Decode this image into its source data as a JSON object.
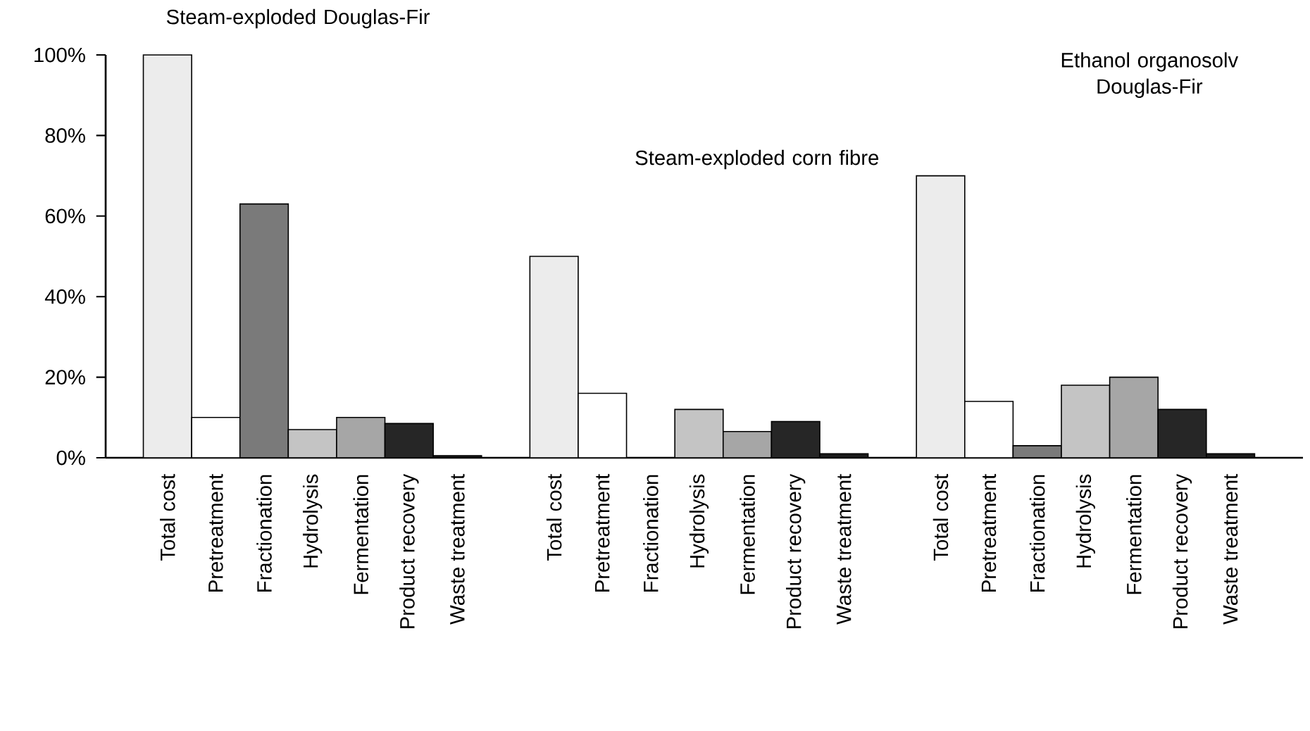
{
  "chart_data": {
    "type": "bar",
    "categories": [
      "Total cost",
      "Pretreatment",
      "Fractionation",
      "Hydrolysis",
      "Fermentation",
      "Product recovery",
      "Waste treatment",
      null,
      "Total cost",
      "Pretreatment",
      "Fractionation",
      "Hydrolysis",
      "Fermentation",
      "Product recovery",
      "Waste treatment",
      null,
      "Total cost",
      "Pretreatment",
      "Fractionation",
      "Hydrolysis",
      "Fermentation",
      "Product recovery",
      "Waste treatment"
    ],
    "values": [
      100,
      10,
      63,
      7,
      10,
      8.5,
      0.5,
      null,
      50,
      16,
      0,
      12,
      6.5,
      9,
      1,
      null,
      70,
      14,
      3,
      18,
      20,
      12,
      1
    ],
    "colors": [
      "#ececec",
      "#ffffff",
      "#7a7a7a",
      "#c4c4c4",
      "#a6a6a6",
      "#262626",
      "#1a1a1a",
      null,
      "#ececec",
      "#ffffff",
      "#7a7a7a",
      "#c4c4c4",
      "#a6a6a6",
      "#262626",
      "#1a1a1a",
      null,
      "#ececec",
      "#ffffff",
      "#7a7a7a",
      "#c4c4c4",
      "#a6a6a6",
      "#262626",
      "#1a1a1a"
    ],
    "ylim": [
      0,
      100
    ],
    "yticks": [
      {
        "value": 0,
        "label": "0%"
      },
      {
        "value": 20,
        "label": "20%"
      },
      {
        "value": 40,
        "label": "40%"
      },
      {
        "value": 60,
        "label": "60%"
      },
      {
        "value": 80,
        "label": "80%"
      },
      {
        "value": 100,
        "label": "100%"
      }
    ],
    "annotations": [
      "Steam-exploded Douglas-Fir",
      "Steam-exploded corn fibre",
      "Ethanol organosolv Douglas-Fir"
    ],
    "grid": false
  }
}
